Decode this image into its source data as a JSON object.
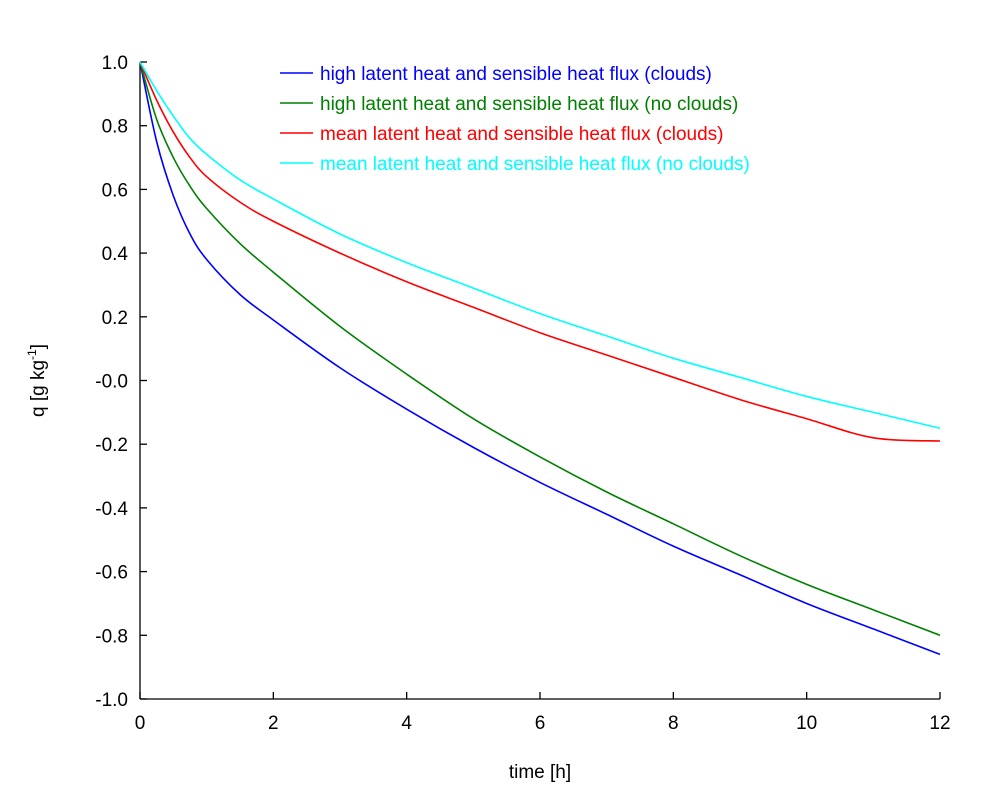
{
  "chart_data": {
    "type": "line",
    "xlabel": "time [h]",
    "ylabel": "q [g kg",
    "ylabel_sup": "-1",
    "ylabel_end": "]",
    "xlim": [
      0,
      12
    ],
    "ylim": [
      -1.0,
      1.0
    ],
    "x_ticks": [
      "0",
      "2",
      "4",
      "6",
      "8",
      "10",
      "12"
    ],
    "y_ticks": [
      "1.0",
      "0.8",
      "0.6",
      "0.4",
      "0.2",
      "-0.0",
      "-0.2",
      "-0.4",
      "-0.6",
      "-0.8",
      "-1.0"
    ],
    "grid": false,
    "legend_position": "top",
    "series": [
      {
        "name": "high latent heat and sensible heat flux (clouds)",
        "color": "#0000ff",
        "x": [
          0,
          0.25,
          0.5,
          0.75,
          1,
          1.5,
          2,
          3,
          4,
          5,
          6,
          7,
          8,
          9,
          10,
          11,
          12
        ],
        "y": [
          1.0,
          0.75,
          0.58,
          0.46,
          0.38,
          0.27,
          0.19,
          0.04,
          -0.09,
          -0.21,
          -0.32,
          -0.42,
          -0.52,
          -0.61,
          -0.7,
          -0.78,
          -0.86
        ]
      },
      {
        "name": "high latent heat and sensible heat flux (no clouds)",
        "color": "#008000",
        "x": [
          0,
          0.25,
          0.5,
          0.75,
          1,
          1.5,
          2,
          3,
          4,
          5,
          6,
          7,
          8,
          9,
          10,
          11,
          12
        ],
        "y": [
          1.0,
          0.82,
          0.7,
          0.61,
          0.54,
          0.43,
          0.34,
          0.17,
          0.02,
          -0.12,
          -0.24,
          -0.35,
          -0.45,
          -0.55,
          -0.64,
          -0.72,
          -0.8
        ]
      },
      {
        "name": "mean latent heat and sensible heat flux (clouds)",
        "color": "#ff0000",
        "x": [
          0,
          0.25,
          0.5,
          0.75,
          1,
          1.5,
          2,
          3,
          4,
          5,
          6,
          7,
          8,
          9,
          10,
          11,
          12
        ],
        "y": [
          1.0,
          0.88,
          0.78,
          0.7,
          0.64,
          0.56,
          0.5,
          0.4,
          0.31,
          0.23,
          0.15,
          0.08,
          0.01,
          -0.06,
          -0.12,
          -0.18,
          -0.19
        ]
      },
      {
        "name": "mean latent heat and sensible heat flux (no clouds)",
        "color": "#00ffff",
        "x": [
          0,
          0.25,
          0.5,
          0.75,
          1,
          1.5,
          2,
          3,
          4,
          5,
          6,
          7,
          8,
          9,
          10,
          11,
          12
        ],
        "y": [
          1.0,
          0.91,
          0.83,
          0.76,
          0.71,
          0.63,
          0.57,
          0.46,
          0.37,
          0.29,
          0.21,
          0.14,
          0.07,
          0.01,
          -0.05,
          -0.1,
          -0.15
        ]
      }
    ]
  }
}
